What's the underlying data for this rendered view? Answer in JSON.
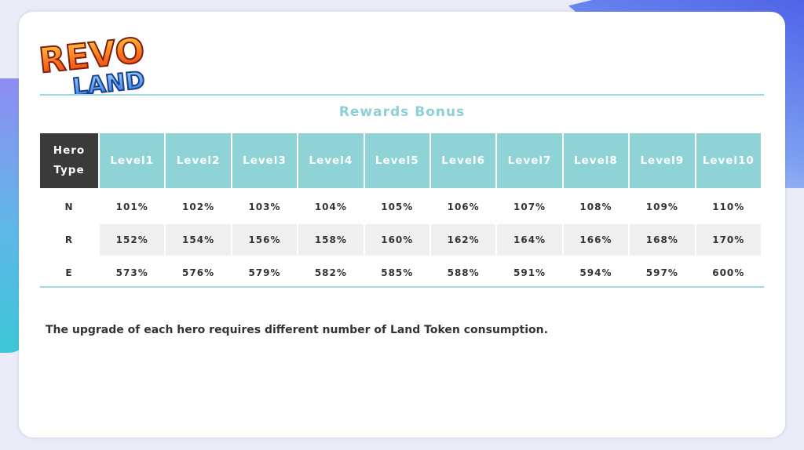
{
  "logo": {
    "text_line1": "REVO",
    "text_line2": "LAND"
  },
  "table": {
    "title": "Rewards Bonus",
    "corner_header_line1": "Hero",
    "corner_header_line2": "Type",
    "columns": [
      "Level1",
      "Level2",
      "Level3",
      "Level4",
      "Level5",
      "Level6",
      "Level7",
      "Level8",
      "Level9",
      "Level10"
    ],
    "rows": [
      {
        "type": "N",
        "values": [
          "101%",
          "102%",
          "103%",
          "104%",
          "105%",
          "106%",
          "107%",
          "108%",
          "109%",
          "110%"
        ]
      },
      {
        "type": "R",
        "values": [
          "152%",
          "154%",
          "156%",
          "158%",
          "160%",
          "162%",
          "164%",
          "166%",
          "168%",
          "170%"
        ]
      },
      {
        "type": "E",
        "values": [
          "573%",
          "576%",
          "579%",
          "582%",
          "585%",
          "588%",
          "591%",
          "594%",
          "597%",
          "600%"
        ]
      }
    ]
  },
  "note": "The upgrade of each hero requires different number of Land Token consumption.",
  "colors": {
    "header_teal": "#8fd3d6",
    "header_dark": "#3a3a3a",
    "title_teal": "#8ccfd5",
    "rule": "#9fdbe0"
  }
}
